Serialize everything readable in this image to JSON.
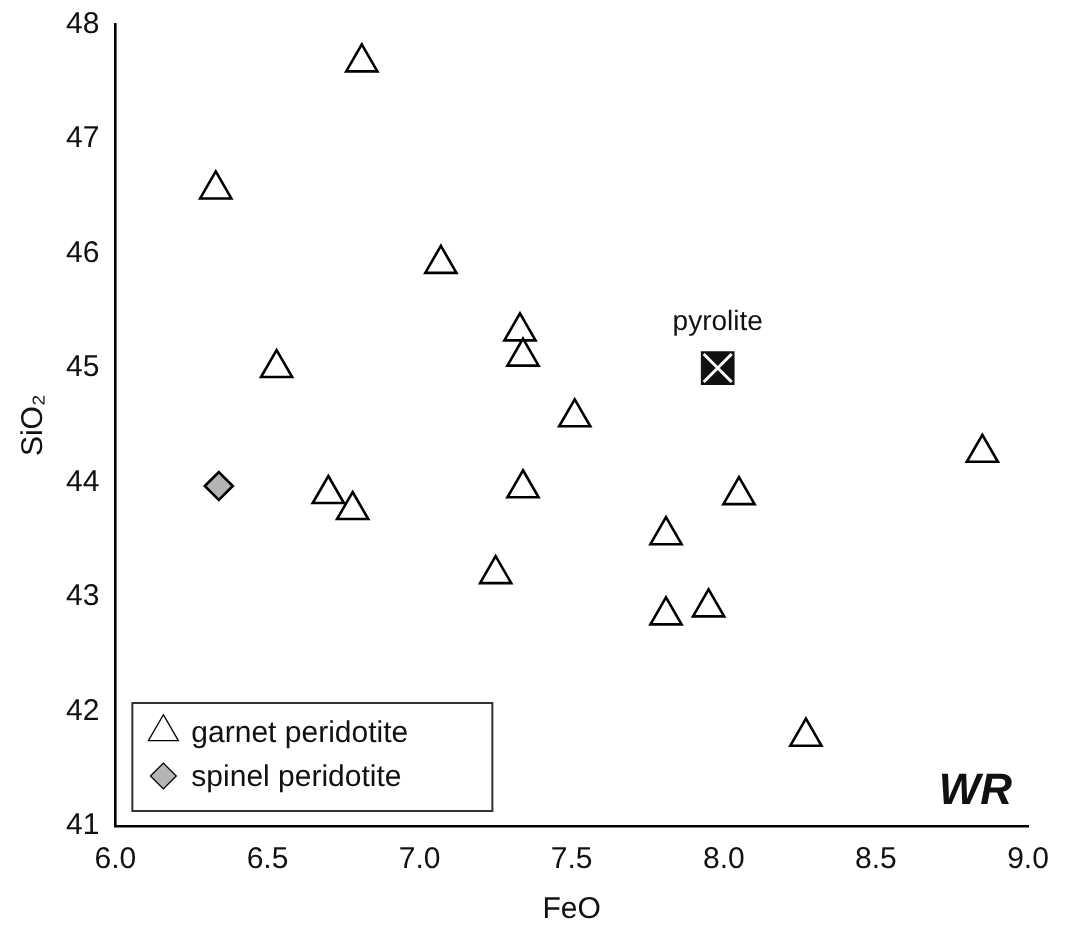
{
  "chart_data": {
    "type": "scatter",
    "xlabel": "FeO",
    "ylabel": "SiO₂",
    "xlim": [
      6.0,
      9.0
    ],
    "xticks": [
      {
        "value": 6.0,
        "label": "6.0"
      },
      {
        "value": 6.5,
        "label": "6.5"
      },
      {
        "value": 7.0,
        "label": "7.0"
      },
      {
        "value": 7.5,
        "label": "7.5"
      },
      {
        "value": 8.0,
        "label": "8.0"
      },
      {
        "value": 8.5,
        "label": "8.5"
      },
      {
        "value": 9.0,
        "label": "9.0"
      }
    ],
    "ylim": [
      41,
      48
    ],
    "yticks": [
      41,
      42,
      43,
      44,
      45,
      46,
      47,
      48
    ],
    "grid": false,
    "legend": "bottom left",
    "annotations": [
      "WR"
    ],
    "series": [
      {
        "name": "garnet peridotite",
        "color": "#ffffff",
        "marker": "triangle",
        "x": [
          6.81,
          6.33,
          6.53,
          7.07,
          7.33,
          7.34,
          7.51,
          7.34,
          8.05,
          7.81,
          7.25,
          7.81,
          7.95,
          8.85,
          6.7,
          6.78,
          8.27
        ],
        "values": [
          47.67,
          46.56,
          45.0,
          45.91,
          45.32,
          45.1,
          44.57,
          43.95,
          43.89,
          43.54,
          43.2,
          42.84,
          42.91,
          44.26,
          43.9,
          43.76,
          41.78
        ]
      },
      {
        "name": "spinel peridotite",
        "color": "#b4b4b4",
        "marker": "diamond",
        "x": [
          6.34
        ],
        "values": [
          43.97
        ]
      },
      {
        "name": "pyrolite",
        "color": "#111111",
        "marker": "square",
        "x": [
          7.98
        ],
        "values": [
          45.0
        ]
      }
    ]
  }
}
